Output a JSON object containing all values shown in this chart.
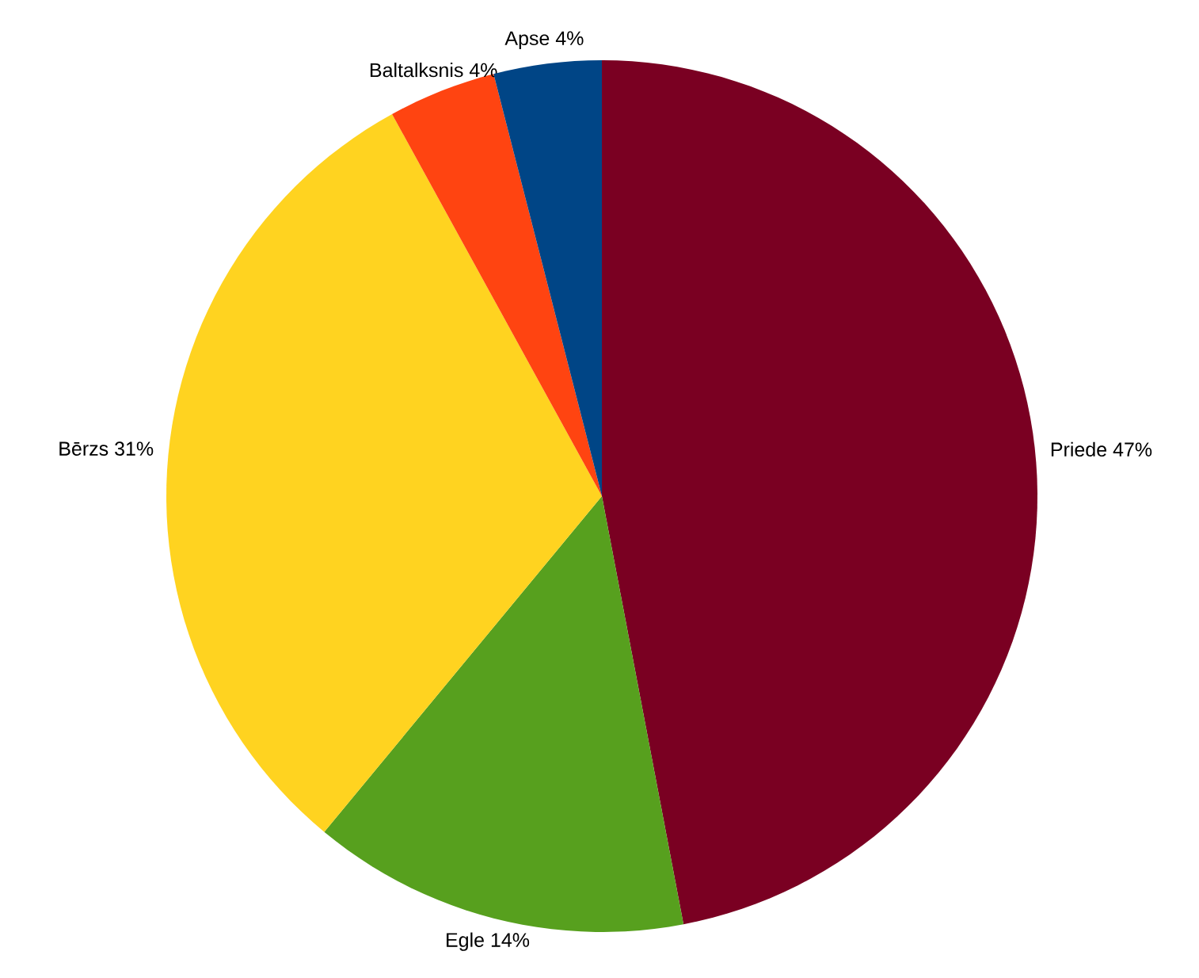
{
  "chart_data": {
    "type": "pie",
    "categories": [
      "Priede",
      "Egle",
      "Bērzs",
      "Baltalksnis",
      "Apse"
    ],
    "values": [
      47,
      14,
      31,
      4,
      4
    ],
    "value_labels": [
      "47%",
      "14%",
      "31%",
      "4%",
      "4%"
    ],
    "colors": [
      "#7a0022",
      "#57a01e",
      "#ffd320",
      "#ff4411",
      "#004586"
    ]
  }
}
